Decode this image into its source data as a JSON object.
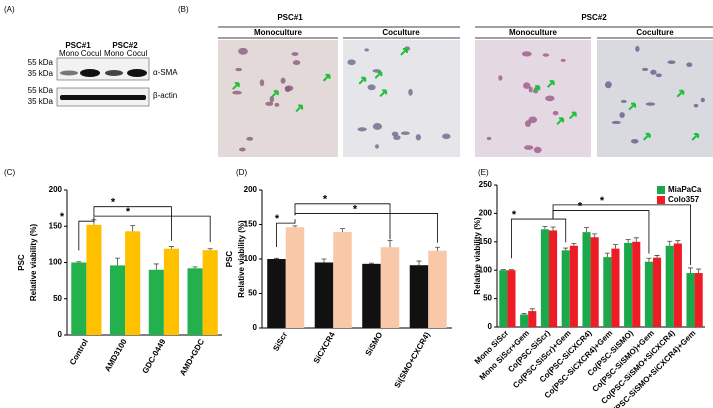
{
  "panel_a": {
    "label": "(A)",
    "groups": [
      "PSC#1",
      "PSC#2"
    ],
    "lanes": [
      "Mono",
      "Cocul",
      "Mono",
      "Cocul"
    ],
    "markers": [
      "55 kDa",
      "35 kDa",
      "55 kDa",
      "35 kDa"
    ],
    "bands": [
      "α-SMA",
      "β-actin"
    ]
  },
  "panel_b": {
    "label": "(B)",
    "groups": [
      {
        "title": "PSC#1",
        "images": [
          "Monoculture",
          "Coculture"
        ]
      },
      {
        "title": "PSC#2",
        "images": [
          "Monoculture",
          "Coculture"
        ]
      }
    ]
  },
  "chart_data": [
    {
      "type": "bar",
      "panel": "(C)",
      "ylabel": "Relative viability (%)",
      "ylabel2": "PSC",
      "categories": [
        "Control",
        "AMD3100",
        "GDC-0449",
        "AMD+GDC"
      ],
      "series": [
        {
          "color": "#22b14c",
          "values": [
            100,
            96,
            90,
            92
          ],
          "errors": [
            1,
            10,
            8,
            2
          ]
        },
        {
          "color": "#ffc000",
          "values": [
            152,
            143,
            119,
            117
          ],
          "errors": [
            7,
            8,
            3,
            2
          ]
        }
      ],
      "ylim": [
        0,
        200
      ],
      "yticks": [
        0,
        50,
        100,
        150,
        200
      ],
      "annotations": [
        "*",
        "*",
        "*"
      ]
    },
    {
      "type": "bar",
      "panel": "(D)",
      "ylabel": "Relative viability (%)",
      "ylabel2": "PSC",
      "categories": [
        "SiScr",
        "SiCXCR4",
        "SiSMO",
        "Si(SMO+CXCR4)"
      ],
      "series": [
        {
          "color": "#111111",
          "values": [
            100,
            95,
            93,
            91
          ],
          "errors": [
            1,
            5,
            1,
            6
          ]
        },
        {
          "color": "#f8c8a8",
          "values": [
            146,
            139,
            117,
            112
          ],
          "errors": [
            2,
            5,
            10,
            5
          ]
        }
      ],
      "ylim": [
        0,
        200
      ],
      "yticks": [
        0,
        50,
        100,
        150,
        200
      ],
      "annotations": [
        "*",
        "*",
        "*"
      ]
    },
    {
      "type": "bar",
      "panel": "(E)",
      "ylabel": "Relative viability (%)",
      "legend": "top-right",
      "categories": [
        "Mono SiScr",
        "Mono SiScr+Gem",
        "Co(PSC-SiScr)",
        "Co(PSC-SiScr)+Gem",
        "Co(PSC-SiCXCR4)",
        "Co(PSC-SiCXCR4)+Gem",
        "Co(PSC-SiSMO)",
        "Co(PSC-SiSMO)+Gem",
        "Co(PSC-SiSMO+SiCXCR4)",
        "Co(PSC-SiSMO+SiCXCR4)+Gem"
      ],
      "series": [
        {
          "name": "MiaPaCa",
          "color": "#1aa84a",
          "values": [
            100,
            22,
            172,
            135,
            167,
            123,
            148,
            115,
            143,
            95
          ],
          "errors": [
            1,
            2,
            5,
            4,
            8,
            7,
            6,
            6,
            8,
            9
          ]
        },
        {
          "name": "Colo357",
          "color": "#ee1c24",
          "values": [
            100,
            28,
            170,
            143,
            158,
            138,
            150,
            122,
            147,
            95
          ],
          "errors": [
            1,
            4,
            6,
            4,
            6,
            7,
            7,
            4,
            5,
            7
          ]
        }
      ],
      "ylim": [
        0,
        250
      ],
      "yticks": [
        0,
        50,
        100,
        150,
        200,
        250
      ],
      "annotations": [
        "*",
        "*",
        "*"
      ]
    }
  ]
}
